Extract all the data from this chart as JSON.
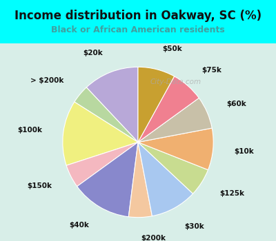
{
  "title": "Income distribution in Oakway, SC (%)",
  "subtitle": "Black or African American residents",
  "bg_outer": "#00ffff",
  "bg_chart": "#d8eee8",
  "watermark": "City-Data.com",
  "labels": [
    "$20k",
    "> $200k",
    "$100k",
    "$150k",
    "$40k",
    "$200k",
    "$30k",
    "$125k",
    "$10k",
    "$60k",
    "$75k",
    "$50k"
  ],
  "values": [
    12,
    4,
    14,
    5,
    13,
    5,
    10,
    6,
    9,
    7,
    7,
    8
  ],
  "colors": [
    "#b8a8d8",
    "#b8d8a0",
    "#f0f080",
    "#f4b8c0",
    "#8888cc",
    "#f4c8a0",
    "#a8c8f0",
    "#c8dc90",
    "#f0b070",
    "#c8c0a8",
    "#f08090",
    "#c8a030"
  ],
  "startangle": 90,
  "label_fontsize": 7.5,
  "title_fontsize": 12,
  "subtitle_fontsize": 9,
  "title_color": "#111111",
  "subtitle_color": "#40a0a0"
}
